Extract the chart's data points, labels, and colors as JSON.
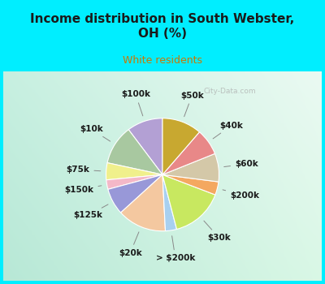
{
  "title": "Income distribution in South Webster,\nOH (%)",
  "subtitle": "White residents",
  "title_color": "#1a1a1a",
  "subtitle_color": "#cc7700",
  "background_cyan": "#00eeff",
  "watermark": "City-Data.com",
  "labels": [
    "$100k",
    "$10k",
    "$75k",
    "$150k",
    "$125k",
    "$20k",
    "> $200k",
    "$30k",
    "$200k",
    "$60k",
    "$40k",
    "$50k"
  ],
  "sizes": [
    9.5,
    10.5,
    4.5,
    2.5,
    7.0,
    13.0,
    3.0,
    14.0,
    3.5,
    7.5,
    7.0,
    10.5
  ],
  "colors": [
    "#b3a0d4",
    "#a8c8a0",
    "#f0f08c",
    "#f4b8c8",
    "#9898d8",
    "#f4c8a0",
    "#a8d0f0",
    "#c8e860",
    "#f4a860",
    "#d4c8a8",
    "#e88888",
    "#c8a830"
  ],
  "startangle": 90,
  "label_fontsize": 7.5,
  "label_color": "#1a1a1a"
}
